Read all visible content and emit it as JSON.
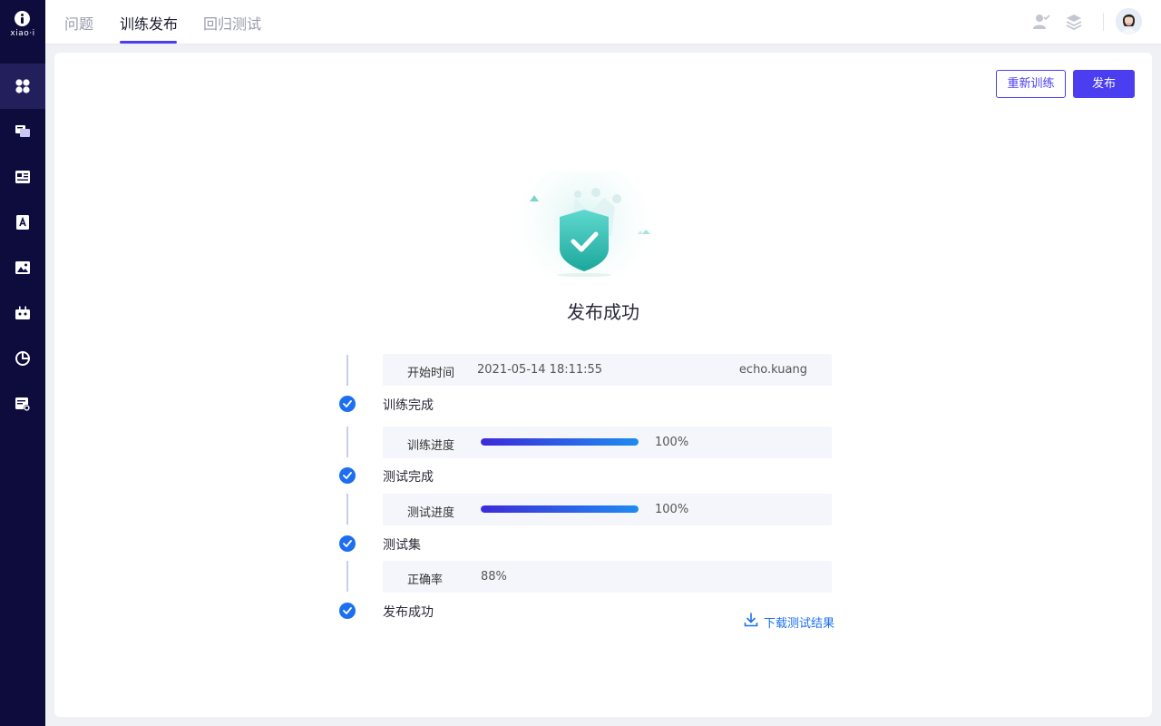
{
  "brand": {
    "logo_text": "xiao·i"
  },
  "sidebar": {
    "items": [
      {
        "icon": "dashboard-icon",
        "active": true
      },
      {
        "icon": "qa-chat-icon",
        "active": false
      },
      {
        "icon": "list-card-icon",
        "active": false
      },
      {
        "icon": "document-icon",
        "active": false
      },
      {
        "icon": "image-icon",
        "active": false
      },
      {
        "icon": "robot-icon",
        "active": false
      },
      {
        "icon": "pie-chart-icon",
        "active": false
      },
      {
        "icon": "settings-list-icon",
        "active": false
      }
    ]
  },
  "header": {
    "tabs": [
      {
        "label": "问题",
        "active": false
      },
      {
        "label": "训练发布",
        "active": true
      },
      {
        "label": "回归测试",
        "active": false
      }
    ],
    "icons": [
      "user-check-icon",
      "layers-icon"
    ],
    "avatar": "user-avatar"
  },
  "actions": {
    "retrain_label": "重新训练",
    "publish_label": "发布"
  },
  "status": {
    "title": "发布成功",
    "accent_color": "#1d6ff0",
    "brand_color": "#4b3ef0"
  },
  "timeline": {
    "start": {
      "key": "开始时间",
      "value": "2021-05-14 18:11:55",
      "user": "echo.kuang"
    },
    "step1": {
      "label": "训练完成"
    },
    "train_progress": {
      "key": "训练进度",
      "value": 100,
      "text": "100%"
    },
    "step2": {
      "label": "测试完成"
    },
    "test_progress": {
      "key": "测试进度",
      "value": 100,
      "text": "100%"
    },
    "step3": {
      "label": "测试集"
    },
    "accuracy": {
      "key": "正确率",
      "text": "88%"
    },
    "step4": {
      "label": "发布成功"
    }
  },
  "download": {
    "label": "下载测试结果"
  }
}
